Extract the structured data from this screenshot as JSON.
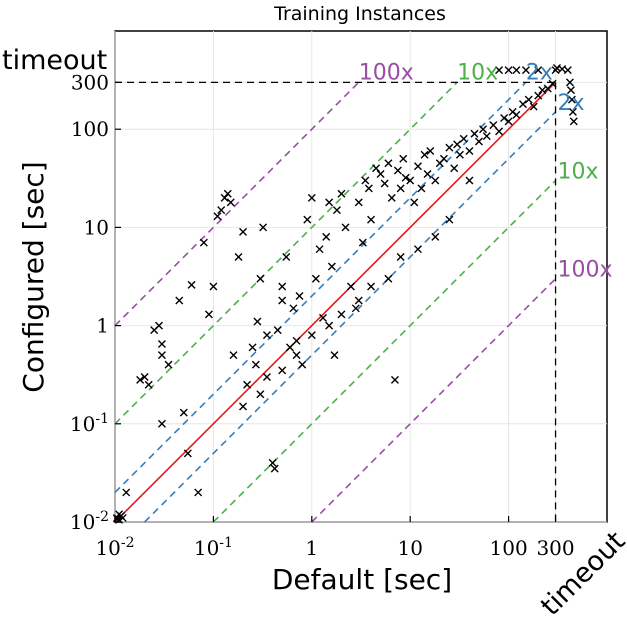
{
  "chart_data": {
    "type": "scatter",
    "title": "Training Instances",
    "xlabel": "Default [sec]",
    "ylabel": "Configured [sec]",
    "xscale": "log",
    "yscale": "log",
    "xlim": [
      0.01,
      1000
    ],
    "ylim": [
      0.01,
      1000
    ],
    "grid": true,
    "timeout_value": 300,
    "timeout_label": "timeout",
    "x_ticks": [
      {
        "value": 0.01,
        "label": "10^-2"
      },
      {
        "value": 0.1,
        "label": "10^-1"
      },
      {
        "value": 1,
        "label": "1"
      },
      {
        "value": 10,
        "label": "10"
      },
      {
        "value": 100,
        "label": "100"
      },
      {
        "value": 300,
        "label": "300"
      }
    ],
    "y_ticks": [
      {
        "value": 0.01,
        "label": "10^-2"
      },
      {
        "value": 0.1,
        "label": "10^-1"
      },
      {
        "value": 1,
        "label": "1"
      },
      {
        "value": 10,
        "label": "10"
      },
      {
        "value": 100,
        "label": "100"
      },
      {
        "value": 300,
        "label": "300"
      }
    ],
    "reference_lines": [
      {
        "factor": 100,
        "label": "100x",
        "color": "#984ea3",
        "style": "dashed"
      },
      {
        "factor": 10,
        "label": "10x",
        "color": "#4daf4a",
        "style": "dashed"
      },
      {
        "factor": 2,
        "label": "2x",
        "color": "#377eb8",
        "style": "dashed"
      },
      {
        "factor": 1,
        "label": "",
        "color": "#e41a1c",
        "style": "solid"
      },
      {
        "factor": 0.5,
        "label": "2x",
        "color": "#377eb8",
        "style": "dashed"
      },
      {
        "factor": 0.1,
        "label": "10x",
        "color": "#4daf4a",
        "style": "dashed"
      },
      {
        "factor": 0.01,
        "label": "100x",
        "color": "#984ea3",
        "style": "dashed"
      }
    ],
    "series": [
      {
        "marker": "x",
        "color": "#000000",
        "points": [
          [
            0.01,
            0.011
          ],
          [
            0.011,
            0.012
          ],
          [
            0.0105,
            0.0108
          ],
          [
            0.012,
            0.011
          ],
          [
            0.0115,
            0.0115
          ],
          [
            0.011,
            0.0105
          ],
          [
            0.013,
            0.02
          ],
          [
            0.018,
            0.28
          ],
          [
            0.02,
            0.3
          ],
          [
            0.022,
            0.25
          ],
          [
            0.025,
            0.9
          ],
          [
            0.028,
            1.0
          ],
          [
            0.03,
            0.65
          ],
          [
            0.03,
            0.5
          ],
          [
            0.03,
            0.1
          ],
          [
            0.035,
            0.4
          ],
          [
            0.045,
            1.8
          ],
          [
            0.05,
            0.13
          ],
          [
            0.055,
            0.05
          ],
          [
            0.06,
            2.6
          ],
          [
            0.07,
            0.02
          ],
          [
            0.08,
            7.0
          ],
          [
            0.09,
            1.3
          ],
          [
            0.1,
            2.5
          ],
          [
            0.11,
            13
          ],
          [
            0.12,
            15
          ],
          [
            0.13,
            20
          ],
          [
            0.14,
            22
          ],
          [
            0.15,
            18
          ],
          [
            0.16,
            0.5
          ],
          [
            0.18,
            5
          ],
          [
            0.2,
            9
          ],
          [
            0.22,
            0.25
          ],
          [
            0.25,
            0.6
          ],
          [
            0.27,
            0.4
          ],
          [
            0.28,
            1.1
          ],
          [
            0.3,
            3
          ],
          [
            0.32,
            10
          ],
          [
            0.35,
            0.8
          ],
          [
            0.35,
            0.3
          ],
          [
            0.4,
            0.04
          ],
          [
            0.42,
            0.035
          ],
          [
            0.45,
            0.9
          ],
          [
            0.5,
            2.5
          ],
          [
            0.5,
            1.8
          ],
          [
            0.55,
            5
          ],
          [
            0.6,
            0.6
          ],
          [
            0.65,
            1.5
          ],
          [
            0.7,
            0.7
          ],
          [
            0.75,
            2.0
          ],
          [
            0.8,
            0.4
          ],
          [
            0.9,
            12
          ],
          [
            1.0,
            20
          ],
          [
            1.1,
            3
          ],
          [
            1.2,
            6
          ],
          [
            1.3,
            1.2
          ],
          [
            1.4,
            8
          ],
          [
            1.5,
            18
          ],
          [
            1.6,
            4
          ],
          [
            1.7,
            0.5
          ],
          [
            1.8,
            15
          ],
          [
            2.0,
            22
          ],
          [
            2.2,
            10
          ],
          [
            2.5,
            2.5
          ],
          [
            2.8,
            1.5
          ],
          [
            3.0,
            18
          ],
          [
            3.3,
            7
          ],
          [
            3.5,
            30
          ],
          [
            3.8,
            25
          ],
          [
            4.0,
            12
          ],
          [
            4.5,
            40
          ],
          [
            5,
            35
          ],
          [
            5.5,
            28
          ],
          [
            6,
            45
          ],
          [
            6.5,
            20
          ],
          [
            7,
            0.28
          ],
          [
            7.5,
            38
          ],
          [
            8,
            25
          ],
          [
            8.5,
            50
          ],
          [
            9,
            32
          ],
          [
            10,
            30
          ],
          [
            11,
            18
          ],
          [
            12,
            42
          ],
          [
            13,
            25
          ],
          [
            14,
            55
          ],
          [
            15,
            35
          ],
          [
            16,
            60
          ],
          [
            18,
            30
          ],
          [
            20,
            45
          ],
          [
            22,
            50
          ],
          [
            25,
            65
          ],
          [
            28,
            40
          ],
          [
            30,
            70
          ],
          [
            32,
            55
          ],
          [
            35,
            80
          ],
          [
            40,
            60
          ],
          [
            45,
            90
          ],
          [
            50,
            75
          ],
          [
            55,
            100
          ],
          [
            60,
            85
          ],
          [
            70,
            110
          ],
          [
            80,
            95
          ],
          [
            90,
            130
          ],
          [
            100,
            120
          ],
          [
            110,
            150
          ],
          [
            120,
            140
          ],
          [
            140,
            180
          ],
          [
            160,
            200
          ],
          [
            180,
            170
          ],
          [
            200,
            220
          ],
          [
            220,
            250
          ],
          [
            250,
            260
          ],
          [
            280,
            290
          ],
          [
            300,
            400
          ],
          [
            310,
            420
          ],
          [
            350,
            410
          ],
          [
            400,
            400
          ],
          [
            420,
            300
          ],
          [
            430,
            250
          ],
          [
            440,
            200
          ],
          [
            450,
            150
          ],
          [
            460,
            120
          ],
          [
            200,
            400
          ],
          [
            150,
            400
          ],
          [
            120,
            400
          ],
          [
            100,
            400
          ],
          [
            80,
            400
          ],
          [
            40,
            30
          ],
          [
            25,
            12
          ],
          [
            18,
            8
          ],
          [
            12,
            6
          ],
          [
            8,
            5
          ],
          [
            6,
            3
          ],
          [
            4,
            2.5
          ],
          [
            3,
            1.8
          ],
          [
            2,
            1.3
          ],
          [
            1.5,
            1.0
          ],
          [
            1,
            0.8
          ],
          [
            0.7,
            0.5
          ],
          [
            0.5,
            0.35
          ],
          [
            0.3,
            0.2
          ],
          [
            0.2,
            0.15
          ]
        ]
      }
    ]
  }
}
